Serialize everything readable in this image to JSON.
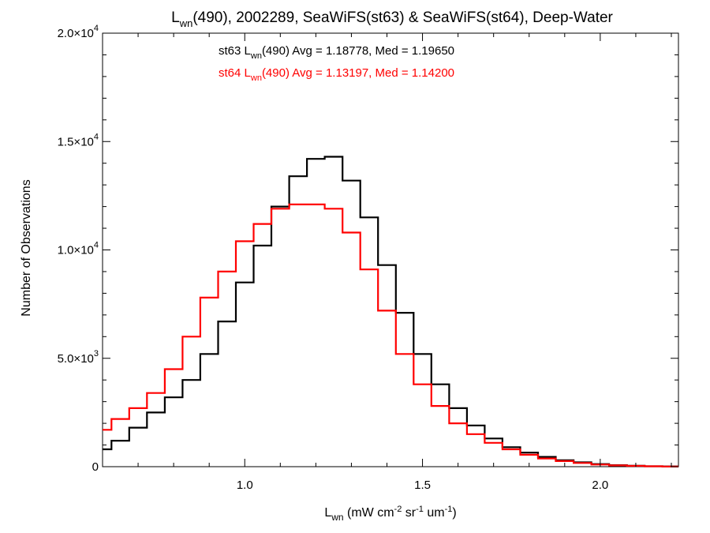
{
  "chart_data": {
    "type": "line",
    "title": {
      "main": "L",
      "sub": "wn",
      "rest": "(490), 2002289, SeaWiFS(st63) & SeaWiFS(st64), Deep-Water"
    },
    "xlabel": {
      "main": "L",
      "sub": "wn",
      "rest": " (mW cm",
      "sup1": "-2",
      "mid1": " sr",
      "sup2": "-1",
      "mid2": " um",
      "sup3": "-1",
      "end": ")"
    },
    "ylabel": "Number of Observations",
    "xlim": [
      0.6,
      2.22
    ],
    "ylim": [
      0,
      20000
    ],
    "xticks": [
      {
        "value": 1.0,
        "label": "1.0"
      },
      {
        "value": 1.5,
        "label": "1.5"
      },
      {
        "value": 2.0,
        "label": "2.0"
      }
    ],
    "yticks": [
      {
        "value": 0,
        "mant": "0",
        "exp": ""
      },
      {
        "value": 5000,
        "mant": "5.0×10",
        "exp": "3"
      },
      {
        "value": 10000,
        "mant": "1.0×10",
        "exp": "4"
      },
      {
        "value": 15000,
        "mant": "1.5×10",
        "exp": "4"
      },
      {
        "value": 20000,
        "mant": "2.0×10",
        "exp": "4"
      }
    ],
    "step_style": "histogram",
    "series": [
      {
        "color": "#000000",
        "stat_prefix": "st63 L",
        "stat_sub": "wn",
        "stat_rest": "(490) Avg = 1.18778, Med = 1.19650",
        "x": [
          0.6,
          0.65,
          0.7,
          0.75,
          0.8,
          0.85,
          0.9,
          0.95,
          1.0,
          1.05,
          1.1,
          1.15,
          1.2,
          1.25,
          1.3,
          1.35,
          1.4,
          1.45,
          1.5,
          1.55,
          1.6,
          1.65,
          1.7,
          1.75,
          1.8,
          1.85,
          1.9,
          1.95,
          2.0,
          2.05,
          2.1,
          2.15,
          2.2
        ],
        "values": [
          800,
          1200,
          1800,
          2500,
          3200,
          4000,
          5200,
          6700,
          8500,
          10200,
          12000,
          13400,
          14200,
          14300,
          13200,
          11500,
          9300,
          7100,
          5200,
          3800,
          2700,
          1900,
          1300,
          900,
          650,
          450,
          300,
          200,
          120,
          70,
          40,
          20,
          10
        ]
      },
      {
        "color": "#ff0000",
        "stat_prefix": "st64 L",
        "stat_sub": "wn",
        "stat_rest": "(490) Avg = 1.13197, Med = 1.14200",
        "x": [
          0.6,
          0.65,
          0.7,
          0.75,
          0.8,
          0.85,
          0.9,
          0.95,
          1.0,
          1.05,
          1.1,
          1.15,
          1.2,
          1.25,
          1.3,
          1.35,
          1.4,
          1.45,
          1.5,
          1.55,
          1.6,
          1.65,
          1.7,
          1.75,
          1.8,
          1.85,
          1.9,
          1.95,
          2.0,
          2.05,
          2.1,
          2.15,
          2.2
        ],
        "values": [
          1700,
          2200,
          2700,
          3400,
          4500,
          6000,
          7800,
          9000,
          10400,
          11200,
          11900,
          12100,
          12100,
          11900,
          10800,
          9100,
          7200,
          5200,
          3800,
          2800,
          2000,
          1500,
          1100,
          800,
          550,
          380,
          260,
          170,
          100,
          60,
          35,
          18,
          8
        ]
      }
    ]
  }
}
